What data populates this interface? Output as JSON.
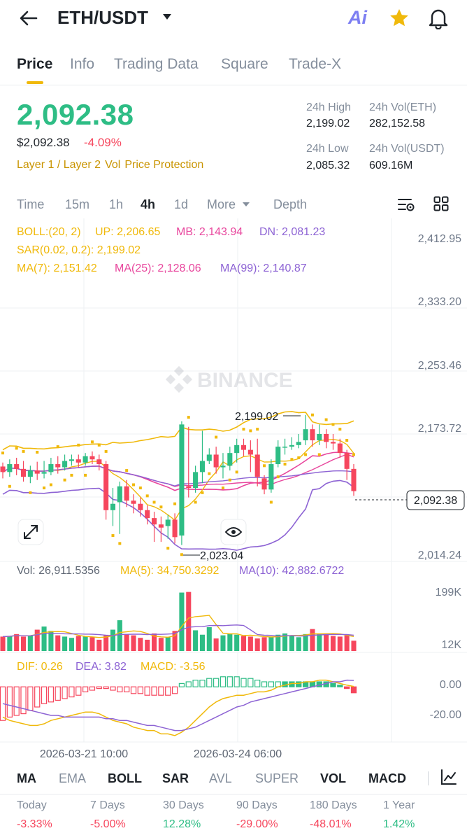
{
  "header": {
    "pair": "ETH/USDT",
    "ai_label": "Ai"
  },
  "tabs": [
    "Price",
    "Info",
    "Trading Data",
    "Square",
    "Trade-X"
  ],
  "price": {
    "last": "2,092.38",
    "usd": "$2,092.38",
    "change": "-4.09%",
    "tags": [
      "Layer 1 / Layer 2",
      "Vol",
      "Price Protection"
    ]
  },
  "stats": {
    "high_label": "24h High",
    "high_value": "2,199.02",
    "vol_eth_label": "24h Vol(ETH)",
    "vol_eth_value": "282,152.58",
    "low_label": "24h Low",
    "low_value": "2,085.32",
    "vol_usdt_label": "24h Vol(USDT)",
    "vol_usdt_value": "609.16M"
  },
  "intervals": [
    "Time",
    "15m",
    "1h",
    "4h",
    "1d",
    "More",
    "Depth"
  ],
  "chart_data": {
    "type": "candlestick",
    "watermark": "BINANCE",
    "price_axis": [
      "2,412.95",
      "2,333.20",
      "2,253.46",
      "2,173.72",
      "2,014.24"
    ],
    "price_range": [
      2014.24,
      2412.95
    ],
    "current_price": "2,092.38",
    "high_marker": "2,199.02",
    "low_marker": "2,023.04",
    "legend": {
      "boll": "BOLL:(20, 2)",
      "boll_up": "UP: 2,206.65",
      "boll_mb": "MB: 2,143.94",
      "boll_dn": "DN: 2,081.23",
      "sar": "SAR(0.02, 0.2): 2,199.02",
      "ma7": "MA(7): 2,151.42",
      "ma25": "MA(25): 2,128.06",
      "ma99": "MA(99): 2,140.87"
    },
    "candles": [
      [
        2125,
        2118,
        2130,
        2110
      ],
      [
        2118,
        2128,
        2134,
        2112
      ],
      [
        2128,
        2122,
        2136,
        2114
      ],
      [
        2122,
        2112,
        2132,
        2106
      ],
      [
        2112,
        2120,
        2126,
        2104
      ],
      [
        2120,
        2116,
        2131,
        2108
      ],
      [
        2116,
        2118,
        2132,
        2110
      ],
      [
        2118,
        2128,
        2136,
        2114
      ],
      [
        2128,
        2124,
        2138,
        2116
      ],
      [
        2124,
        2132,
        2140,
        2120
      ],
      [
        2132,
        2134,
        2140,
        2126
      ],
      [
        2134,
        2130,
        2140,
        2124
      ],
      [
        2130,
        2138,
        2142,
        2126
      ],
      [
        2138,
        2134,
        2144,
        2128
      ],
      [
        2134,
        2128,
        2140,
        2120
      ],
      [
        2128,
        2070,
        2132,
        2058
      ],
      [
        2070,
        2078,
        2098,
        2050
      ],
      [
        2080,
        2100,
        2106,
        2040
      ],
      [
        2100,
        2082,
        2108,
        2074
      ],
      [
        2082,
        2078,
        2090,
        2066
      ],
      [
        2078,
        2070,
        2086,
        2062
      ],
      [
        2070,
        2060,
        2076,
        2052
      ],
      [
        2060,
        2052,
        2068,
        2030
      ],
      [
        2052,
        2048,
        2062,
        2030
      ],
      [
        2050,
        2058,
        2064,
        2034
      ],
      [
        2058,
        2036,
        2066,
        2028
      ],
      [
        2038,
        2178,
        2182,
        2026
      ],
      [
        2100,
        2098,
        2175,
        2086
      ],
      [
        2098,
        2118,
        2126,
        2092
      ],
      [
        2118,
        2132,
        2170,
        2104
      ],
      [
        2132,
        2140,
        2148,
        2128
      ],
      [
        2140,
        2124,
        2150,
        2116
      ],
      [
        2124,
        2126,
        2142,
        2110
      ],
      [
        2126,
        2142,
        2150,
        2120
      ],
      [
        2142,
        2152,
        2160,
        2130
      ],
      [
        2152,
        2146,
        2160,
        2138
      ],
      [
        2146,
        2140,
        2158,
        2118
      ],
      [
        2140,
        2112,
        2160,
        2100
      ],
      [
        2110,
        2096,
        2114,
        2090
      ],
      [
        2096,
        2128,
        2134,
        2092
      ],
      [
        2128,
        2150,
        2158,
        2124
      ],
      [
        2150,
        2150,
        2160,
        2140
      ],
      [
        2150,
        2152,
        2162,
        2146
      ],
      [
        2152,
        2156,
        2166,
        2148
      ],
      [
        2158,
        2172,
        2190,
        2152
      ],
      [
        2172,
        2158,
        2178,
        2150
      ],
      [
        2158,
        2166,
        2178,
        2152
      ],
      [
        2166,
        2156,
        2172,
        2148
      ],
      [
        2156,
        2154,
        2166,
        2146
      ],
      [
        2154,
        2142,
        2160,
        2136
      ],
      [
        2142,
        2122,
        2146,
        2108
      ],
      [
        2122,
        2094,
        2128,
        2088
      ]
    ],
    "volume": {
      "legend_vol": "Vol: 26,911.5356",
      "legend_ma5": "MA(5): 34,750.3292",
      "legend_ma10": "MA(10): 42,882.6722",
      "axis_top": "199K",
      "axis_bottom": "12K",
      "range": [
        12000,
        199000
      ],
      "values": [
        40,
        42,
        48,
        40,
        44,
        62,
        72,
        58,
        44,
        40,
        36,
        42,
        40,
        38,
        30,
        44,
        62,
        92,
        48,
        44,
        36,
        30,
        50,
        36,
        38,
        58,
        180,
        182,
        60,
        46,
        70,
        34,
        44,
        50,
        46,
        42,
        40,
        34,
        38,
        40,
        46,
        50,
        44,
        38,
        48,
        64,
        50,
        46,
        42,
        40,
        44,
        26.9
      ]
    },
    "macd": {
      "legend_dif": "DIF: 0.26",
      "legend_dea": "DEA: 3.82",
      "legend_macd": "MACD: -3.56",
      "axis": [
        "0.00",
        "-20.00"
      ],
      "range": [
        -32,
        8
      ],
      "histogram": [
        -20,
        -18,
        -17,
        -16,
        -14,
        -12,
        -10,
        -9,
        -8,
        -7,
        -6,
        -5,
        -3,
        -2,
        -1,
        -1,
        -2,
        -3,
        -3,
        -4,
        -4,
        -5,
        -5,
        -5,
        -5,
        -4,
        2,
        3,
        4,
        4,
        5,
        5,
        6,
        6,
        6,
        5,
        5,
        4,
        3,
        3,
        3,
        3,
        3,
        3,
        3,
        3,
        3,
        3,
        2,
        1,
        -1,
        -3.56
      ],
      "dif": [
        -18,
        -20,
        -21,
        -22,
        -23,
        -23,
        -22,
        -20,
        -19,
        -18,
        -17,
        -16,
        -15,
        -15,
        -16,
        -18,
        -20,
        -21,
        -22,
        -24,
        -25,
        -26,
        -26,
        -28,
        -28,
        -29,
        -27,
        -24,
        -20,
        -16,
        -12,
        -9,
        -7,
        -6,
        -5,
        -5,
        -4,
        -3,
        -3,
        -2,
        0,
        1,
        2,
        2,
        3,
        3,
        4,
        4,
        3,
        2,
        1,
        0.26
      ],
      "dea": [
        -10,
        -11,
        -12,
        -13,
        -14,
        -15,
        -16,
        -17,
        -17,
        -18,
        -18,
        -18,
        -18,
        -18,
        -18,
        -19,
        -19,
        -20,
        -20,
        -21,
        -22,
        -23,
        -23,
        -24,
        -25,
        -26,
        -26,
        -25,
        -24,
        -22,
        -20,
        -18,
        -16,
        -14,
        -12,
        -11,
        -9,
        -8,
        -7,
        -6,
        -5,
        -4,
        -3,
        -2,
        -1,
        0,
        1,
        2,
        3,
        3,
        4,
        3.82
      ]
    },
    "x_labels": [
      "2026-03-21 10:00",
      "2026-03-24 06:00"
    ]
  },
  "indicators": [
    "MA",
    "EMA",
    "BOLL",
    "SAR",
    "AVL",
    "SUPER",
    "VOL",
    "MACD"
  ],
  "performance": [
    {
      "label": "Today",
      "value": "-3.33%"
    },
    {
      "label": "7 Days",
      "value": "-5.00%"
    },
    {
      "label": "30 Days",
      "value": "12.28%"
    },
    {
      "label": "90 Days",
      "value": "-29.00%"
    },
    {
      "label": "180 Days",
      "value": "-48.01%"
    },
    {
      "label": "1 Year",
      "value": "1.42%"
    }
  ],
  "colors": {
    "up": "#2ebd85",
    "down": "#f6465d",
    "yellow": "#f0b90b",
    "pink": "#e8469d",
    "purple": "#8d63d4",
    "text": "#1e2329",
    "muted": "#848e9c"
  }
}
